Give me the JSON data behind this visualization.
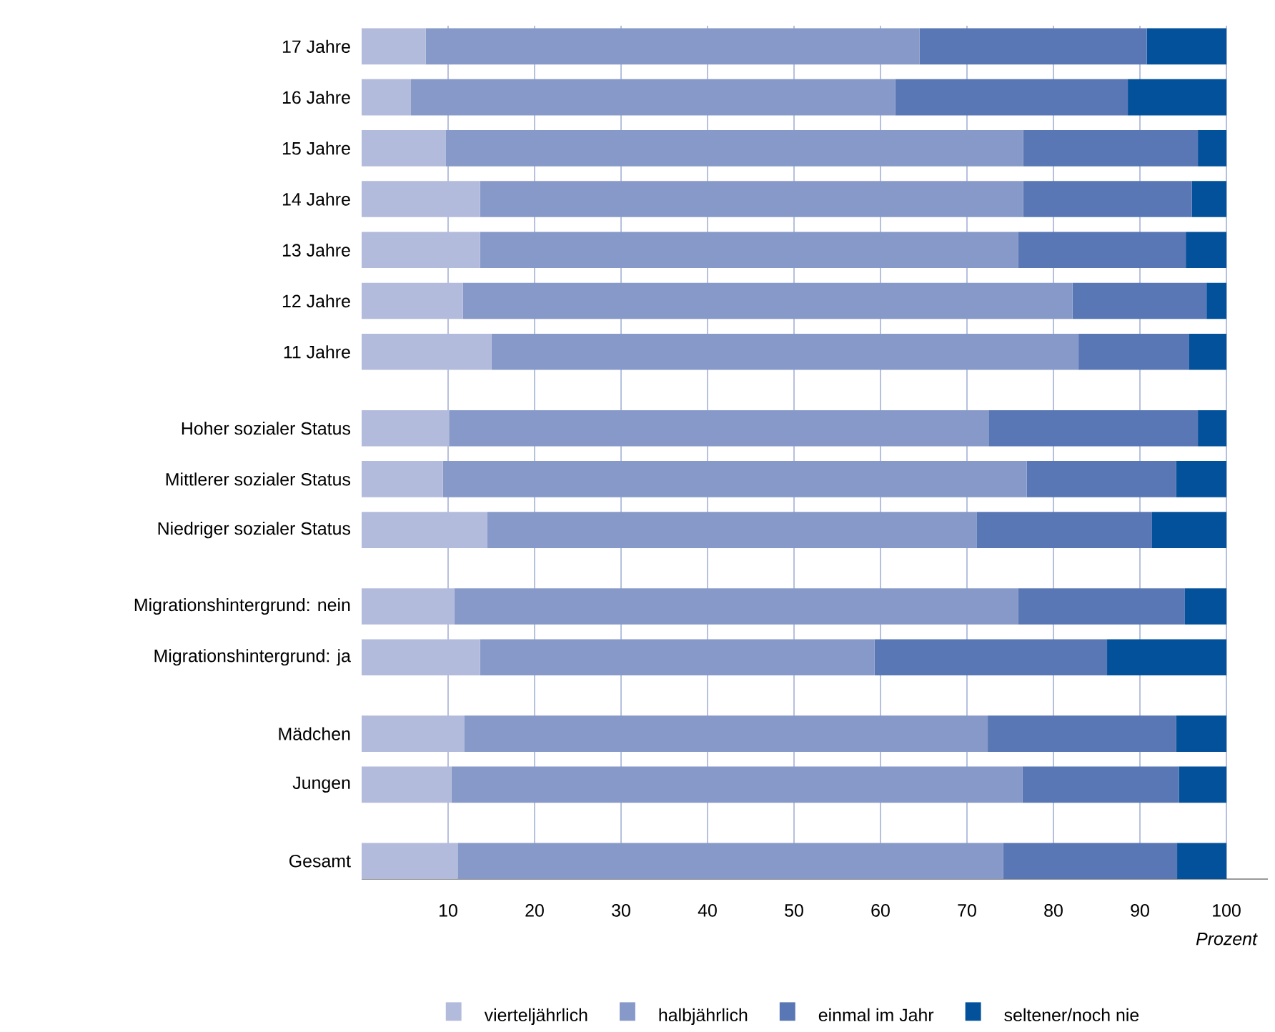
{
  "chart_data": {
    "type": "bar",
    "orientation": "horizontal",
    "stacked": true,
    "categories": [
      "17 Jahre",
      "16 Jahre",
      "15 Jahre",
      "14 Jahre",
      "13 Jahre",
      "12 Jahre",
      "11 Jahre",
      null,
      "Hoher sozialer Status",
      "Mittlerer sozialer Status",
      "Niedriger sozialer Status",
      null,
      "Migrationshintergrund: nein",
      "Migrationshintergrund: ja",
      null,
      "Mädchen",
      "Jungen",
      null,
      "Gesamt"
    ],
    "series": [
      {
        "name": "vierteljährlich",
        "color": "#b3bbdc",
        "values": [
          7.4,
          5.7,
          9.7,
          13.7,
          13.7,
          11.7,
          15.0,
          null,
          10.1,
          9.4,
          14.5,
          null,
          10.7,
          13.7,
          null,
          11.9,
          10.4,
          null,
          11.1
        ]
      },
      {
        "name": "halbjährlich",
        "color": "#8799c8",
        "values": [
          57.1,
          56.0,
          66.8,
          62.8,
          62.2,
          70.5,
          67.9,
          null,
          62.4,
          67.5,
          56.6,
          null,
          65.2,
          45.6,
          null,
          60.5,
          66.0,
          null,
          63.1
        ]
      },
      {
        "name": "einmal im Jahr",
        "color": "#5877b4",
        "values": [
          26.3,
          26.9,
          20.2,
          19.5,
          19.4,
          15.5,
          12.8,
          null,
          24.2,
          17.3,
          20.3,
          null,
          19.3,
          26.9,
          null,
          21.8,
          18.1,
          null,
          20.1
        ]
      },
      {
        "name": "seltener/noch nie",
        "color": "#03519a",
        "values": [
          9.2,
          11.4,
          3.3,
          4.0,
          4.7,
          2.3,
          4.3,
          null,
          3.3,
          5.8,
          8.6,
          null,
          4.8,
          13.8,
          null,
          5.8,
          5.5,
          null,
          5.7
        ]
      }
    ],
    "xlim": [
      0,
      100
    ],
    "xticks": [
      10,
      20,
      30,
      40,
      50,
      60,
      70,
      80,
      90,
      100
    ],
    "xlabel": "Prozent",
    "grid": "x",
    "legend": "bottom"
  }
}
